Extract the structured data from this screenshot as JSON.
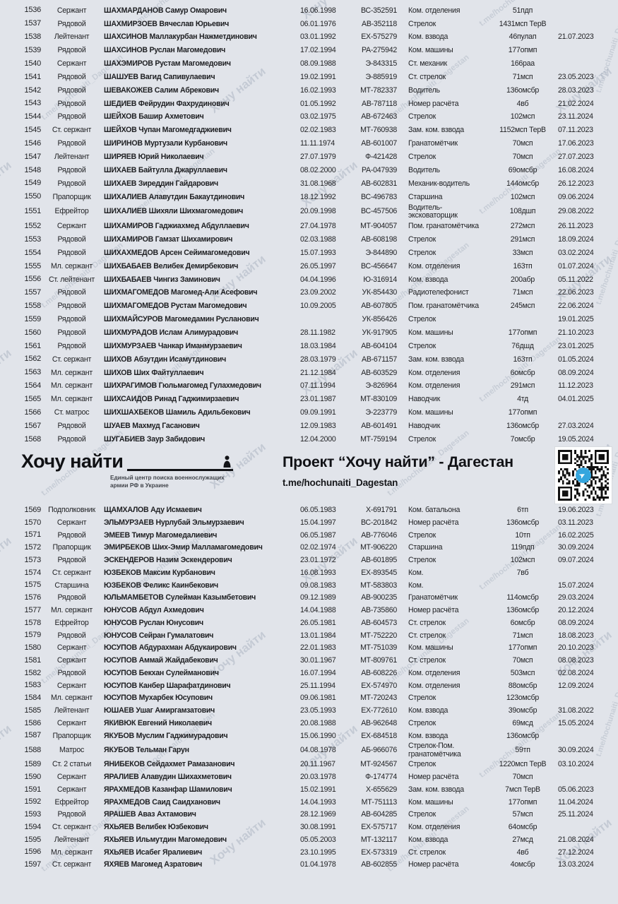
{
  "watermark": {
    "text_large": "Хочу найти",
    "text_small": "t.me/hochunaiti_Dagestan"
  },
  "colors": {
    "background": "#e1e4ea",
    "text": "#1e1f22",
    "watermark": "#8d99ab",
    "telegram_blue": "#35a6de"
  },
  "header": {
    "logo_title": "Хочу найти",
    "logo_tagline": "Единый центр поиска военнослужащих армии РФ в Украине",
    "project_title": "Проект “Хочу найти” - Дагестан",
    "project_link": "t.me/hochunaiti_Dagestan",
    "qr_icon": "telegram-icon"
  },
  "table": {
    "columns": [
      "num",
      "rank",
      "name",
      "dob",
      "id",
      "position",
      "unit",
      "date"
    ],
    "rows_top": [
      [
        "1536",
        "Сержант",
        "ШАХМАРДАНОВ Самур Омарович",
        "16.06.1998",
        "ВС-352591",
        "Ком. отделения",
        "51пдп",
        ""
      ],
      [
        "1537",
        "Рядовой",
        "ШАХМИРЗОЕВ Вячеслав Юрьевич",
        "06.01.1976",
        "АВ-352118",
        "Стрелок",
        "1431мсп ТерВ",
        ""
      ],
      [
        "1538",
        "Лейтенант",
        "ШАХСИНОВ Маллакурбан Нажметдинович",
        "03.01.1992",
        "ЕХ-575279",
        "Ком. взвода",
        "46пулап",
        "21.07.2023"
      ],
      [
        "1539",
        "Рядовой",
        "ШАХСИНОВ Руслан Магомедович",
        "17.02.1994",
        "РА-275942",
        "Ком. машины",
        "177опмп",
        ""
      ],
      [
        "1540",
        "Сержант",
        "ШАХЭМИРОВ Рустам Магомедович",
        "08.09.1988",
        "Э-843315",
        "Ст. механик",
        "166раа",
        ""
      ],
      [
        "1541",
        "Рядовой",
        "ШАШУЕВ Вагид Сапивулаевич",
        "19.02.1991",
        "Э-885919",
        "Ст. стрелок",
        "71мсп",
        "23.05.2023"
      ],
      [
        "1542",
        "Рядовой",
        "ШЕВАКОЖЕВ Салим Абрекович",
        "16.02.1993",
        "МТ-782337",
        "Водитель",
        "136омсбр",
        "28.03.2023"
      ],
      [
        "1543",
        "Рядовой",
        "ШЕДИЕВ Фейрудин Фахрудинович",
        "01.05.1992",
        "АВ-787118",
        "Номер расчёта",
        "4вб",
        "21.02.2024"
      ],
      [
        "1544",
        "Рядовой",
        "ШЕЙХОВ Башир Ахметович",
        "03.02.1975",
        "АВ-672463",
        "Стрелок",
        "102мсп",
        "23.11.2024"
      ],
      [
        "1545",
        "Ст. сержант",
        "ШЕЙХОВ Чупан Магомедгаджиевич",
        "02.02.1983",
        "МТ-760938",
        "Зам. ком. взвода",
        "1152мсп ТерВ",
        "07.11.2023"
      ],
      [
        "1546",
        "Рядовой",
        "ШИРИНОВ Муртузали Курбанович",
        "11.11.1974",
        "АВ-601007",
        "Гранатомётчик",
        "70мсп",
        "17.06.2023"
      ],
      [
        "1547",
        "Лейтенант",
        "ШИРЯЕВ Юрий Николаевич",
        "27.07.1979",
        "Ф-421428",
        "Стрелок",
        "70мсп",
        "27.07.2023"
      ],
      [
        "1548",
        "Рядовой",
        "ШИХАЕВ Байтулла Джаруллаевич",
        "08.02.2000",
        "РА-047939",
        "Водитель",
        "69омсбр",
        "16.08.2024"
      ],
      [
        "1549",
        "Рядовой",
        "ШИХАЕВ Зиреддин Гайдарович",
        "31.08.1968",
        "АВ-602831",
        "Механик-водитель",
        "144омсбр",
        "26.12.2023"
      ],
      [
        "1550",
        "Прапорщик",
        "ШИХАЛИЕВ Алавутдин Бакаутдинович",
        "18.12.1992",
        "ВС-496783",
        "Старшина",
        "102мсп",
        "09.06.2024"
      ],
      [
        "1551",
        "Ефрейтор",
        "ШИХАЛИЕВ Шихяли Шихмагомедович",
        "20.09.1998",
        "ВС-457506",
        "Водитель-эксковаторщик",
        "108дшп",
        "29.08.2022"
      ],
      [
        "1552",
        "Сержант",
        "ШИХАМИРОВ Гаджиахмед Абдуллаевич",
        "27.04.1978",
        "МТ-904057",
        "Пом. гранатомётчика",
        "272мсп",
        "26.11.2023"
      ],
      [
        "1553",
        "Рядовой",
        "ШИХАМИРОВ Гамзат Шихамирович",
        "02.03.1988",
        "АВ-608198",
        "Стрелок",
        "291мсп",
        "18.09.2024"
      ],
      [
        "1554",
        "Рядовой",
        "ШИХАХМЕДОВ Арсен Сейимагомедович",
        "15.07.1993",
        "Э-844890",
        "Стрелок",
        "33мсп",
        "03.02.2024"
      ],
      [
        "1555",
        "Мл. сержант",
        "ШИХБАБАЕВ Велибек Демирбекович",
        "26.05.1997",
        "ВС-456647",
        "Ком. отделения",
        "163тп",
        "01.07.2024"
      ],
      [
        "1556",
        "Ст. лейтенант",
        "ШИХБАБАЕВ Чингиз Заминович",
        "04.04.1996",
        "Ю-316914",
        "Ком. взвода",
        "200абр",
        "05.11.2022"
      ],
      [
        "1557",
        "Рядовой",
        "ШИХМАГОМЕДОВ Магомед-Али Асефович",
        "23.09.2002",
        "УК-854430",
        "Радиотелефонист",
        "71мсп",
        "22.06.2023"
      ],
      [
        "1558",
        "Рядовой",
        "ШИХМАГОМЕДОВ Рустам Магомедович",
        "10.09.2005",
        "АВ-607805",
        "Пом. гранатомётчика",
        "245мсп",
        "22.06.2024"
      ],
      [
        "1559",
        "Рядовой",
        "ШИХМАЙСУРОВ Магомедамин Русланович",
        "",
        "УК-856426",
        "Стрелок",
        "",
        "19.01.2025"
      ],
      [
        "1560",
        "Рядовой",
        "ШИХМУРАДОВ Ислам Алимурадович",
        "28.11.1982",
        "УК-917905",
        "Ком. машины",
        "177опмп",
        "21.10.2023"
      ],
      [
        "1561",
        "Рядовой",
        "ШИХМУРЗАЕВ Чанкар Иманмурзаевич",
        "18.03.1984",
        "АВ-604104",
        "Стрелок",
        "76дшд",
        "23.01.2025"
      ],
      [
        "1562",
        "Ст. сержант",
        "ШИХОВ Абзутдин Исамутдинович",
        "28.03.1979",
        "АВ-671157",
        "Зам. ком. взвода",
        "163тп",
        "01.05.2024"
      ],
      [
        "1563",
        "Мл. сержант",
        "ШИХОВ Ших Файтуллаевич",
        "21.12.1984",
        "АВ-603529",
        "Ком. отделения",
        "6омсбр",
        "08.09.2024"
      ],
      [
        "1564",
        "Мл. сержант",
        "ШИХРАГИМОВ Гюльмагомед Гулахмедович",
        "07.11.1994",
        "Э-826964",
        "Ком. отделения",
        "291мсп",
        "11.12.2023"
      ],
      [
        "1565",
        "Мл. сержант",
        "ШИХСАИДОВ Ринад Гаджимирзаевич",
        "23.01.1987",
        "МТ-830109",
        "Наводчик",
        "4тд",
        "04.01.2025"
      ],
      [
        "1566",
        "Ст. матрос",
        "ШИХШАХБЕКОВ Шамиль Адильбекович",
        "09.09.1991",
        "Э-223779",
        "Ком. машины",
        "177опмп",
        ""
      ],
      [
        "1567",
        "Рядовой",
        "ШУАЕВ Махмуд Гасанович",
        "12.09.1983",
        "АВ-601491",
        "Наводчик",
        "136омсбр",
        "27.03.2024"
      ],
      [
        "1568",
        "Рядовой",
        "ШУГАБИЕВ Заур Забидович",
        "12.04.2000",
        "МТ-759194",
        "Стрелок",
        "7омсбр",
        "19.05.2024"
      ]
    ],
    "rows_bottom": [
      [
        "1569",
        "Подполковник",
        "ЩАМХАЛОВ Аду Исмаевич",
        "06.05.1983",
        "Х-691791",
        "Ком. батальона",
        "6тп",
        "19.06.2023"
      ],
      [
        "1570",
        "Сержант",
        "ЭЛЬМУРЗАЕВ Нурлубай Эльмурзаевич",
        "15.04.1997",
        "ВС-201842",
        "Номер расчёта",
        "136омсбр",
        "03.11.2023"
      ],
      [
        "1571",
        "Рядовой",
        "ЭМЕЕВ Тимур Магомедалиевич",
        "06.05.1987",
        "АВ-776046",
        "Стрелок",
        "10тп",
        "16.02.2025"
      ],
      [
        "1572",
        "Прапорщик",
        "ЭМИРБЕКОВ Ших-Эмир Малламагомедович",
        "02.02.1974",
        "МТ-906220",
        "Старшина",
        "119пдп",
        "30.09.2024"
      ],
      [
        "1573",
        "Рядовой",
        "ЭСКЕНДЕРОВ Назим Эскендерович",
        "23.01.1972",
        "АВ-601895",
        "Стрелок",
        "102мсп",
        "09.07.2024"
      ],
      [
        "1574",
        "Ст. сержант",
        "ЮЗБЕКОВ Максим Курбанович",
        "16.08.1993",
        "ЕХ-893545",
        "Ком.",
        "7вб",
        ""
      ],
      [
        "1575",
        "Старшина",
        "ЮЗБЕКОВ Феликс Каинбекович",
        "09.08.1983",
        "МТ-583803",
        "Ком.",
        "",
        "15.07.2024"
      ],
      [
        "1576",
        "Рядовой",
        "ЮЛЬМАМБЕТОВ Сулейман Казымбетович",
        "09.12.1989",
        "АВ-900235",
        "Гранатомётчик",
        "114омсбр",
        "29.03.2024"
      ],
      [
        "1577",
        "Мл. сержант",
        "ЮНУСОВ Абдул Ахмедович",
        "14.04.1988",
        "АВ-735860",
        "Номер расчёта",
        "136омсбр",
        "20.12.2024"
      ],
      [
        "1578",
        "Ефрейтор",
        "ЮНУСОВ Руслан Юнусович",
        "26.05.1981",
        "АВ-604573",
        "Ст. стрелок",
        "6омсбр",
        "08.09.2024"
      ],
      [
        "1579",
        "Рядовой",
        "ЮНУСОВ Сейран Гумалатович",
        "13.01.1984",
        "МТ-752220",
        "Ст. стрелок",
        "71мсп",
        "18.08.2023"
      ],
      [
        "1580",
        "Сержант",
        "ЮСУПОВ Абдурахман Абдукаирович",
        "22.01.1983",
        "МТ-751039",
        "Ком. машины",
        "177опмп",
        "20.10.2023"
      ],
      [
        "1581",
        "Сержант",
        "ЮСУПОВ Аммай Жайдабекович",
        "30.01.1967",
        "МТ-809761",
        "Ст. стрелок",
        "70мсп",
        "08.08.2023"
      ],
      [
        "1582",
        "Рядовой",
        "ЮСУПОВ Бекхан Сулейманович",
        "16.07.1994",
        "АВ-608226",
        "Ком. отделения",
        "503мсп",
        "02.08.2024"
      ],
      [
        "1583",
        "Сержант",
        "ЮСУПОВ Канбер Шарафатдинович",
        "25.11.1994",
        "ЕХ-574970",
        "Ком. отделения",
        "88омсбр",
        "12.09.2024"
      ],
      [
        "1584",
        "Мл. сержант",
        "ЮСУПОВ Мухарбек Юсупович",
        "09.06.1981",
        "МТ-720243",
        "Стрелок",
        "123омсбр",
        ""
      ],
      [
        "1585",
        "Лейтенант",
        "ЮШАЕВ Ушаг Амиргамзатович",
        "23.05.1993",
        "ЕХ-772610",
        "Ком. взвода",
        "39омсбр",
        "31.08.2022"
      ],
      [
        "1586",
        "Сержант",
        "ЯКИВЮК Евгений Николаевич",
        "20.08.1988",
        "АВ-962648",
        "Стрелок",
        "69мсд",
        "15.05.2024"
      ],
      [
        "1587",
        "Прапорщик",
        "ЯКУБОВ Муслим Гаджимурадович",
        "15.06.1990",
        "ЕХ-684518",
        "Ком. взвода",
        "136омсбр",
        ""
      ],
      [
        "1588",
        "Матрос",
        "ЯКУБОВ Тельман Гарун",
        "04.08.1978",
        "АБ-966076",
        "Стрелок-Пом. гранатомётчика",
        "59тп",
        "30.09.2024"
      ],
      [
        "1589",
        "Ст. 2 статьи",
        "ЯНИБЕКОВ Сейдахмет Рамазанович",
        "20.11.1967",
        "МТ-924567",
        "Стрелок",
        "1220мсп ТерВ",
        "03.10.2024"
      ],
      [
        "1590",
        "Сержант",
        "ЯРАЛИЕВ Алавудин Шихахметович",
        "20.03.1978",
        "Ф-174774",
        "Номер расчёта",
        "70мсп",
        ""
      ],
      [
        "1591",
        "Сержант",
        "ЯРАХМЕДОВ Казанфар Шамилович",
        "15.02.1991",
        "Х-655629",
        "Зам. ком. взвода",
        "7мсп ТерВ",
        "05.06.2023"
      ],
      [
        "1592",
        "Ефрейтор",
        "ЯРАХМЕДОВ Саид Саидханович",
        "14.04.1993",
        "МТ-751113",
        "Ком. машины",
        "177опмп",
        "11.04.2024"
      ],
      [
        "1593",
        "Рядовой",
        "ЯРАШЕВ Аваз Ахтамович",
        "28.12.1969",
        "АВ-604285",
        "Стрелок",
        "57мсп",
        "25.11.2024"
      ],
      [
        "1594",
        "Ст. сержант",
        "ЯХЬЯЕВ Велибек Юзбекович",
        "30.08.1991",
        "ЕХ-575717",
        "Ком. отделения",
        "64омсбр",
        ""
      ],
      [
        "1595",
        "Лейтенант",
        "ЯХЬЯЕВ Ильмутдин Магомедович",
        "05.05.2003",
        "МТ-132117",
        "Ком. взвода",
        "27мсд",
        "21.08.2024"
      ],
      [
        "1596",
        "Мл. сержант",
        "ЯХЬЯЕВ Исабег Яралиевич",
        "23.10.1995",
        "ЕХ-573319",
        "Ст. стрелок",
        "4вб",
        "27.12.2024"
      ],
      [
        "1597",
        "Ст. сержант",
        "ЯХЯЕВ Магомед Азратович",
        "01.04.1978",
        "АВ-602855",
        "Номер расчёта",
        "4омсбр",
        "13.03.2024"
      ]
    ]
  }
}
